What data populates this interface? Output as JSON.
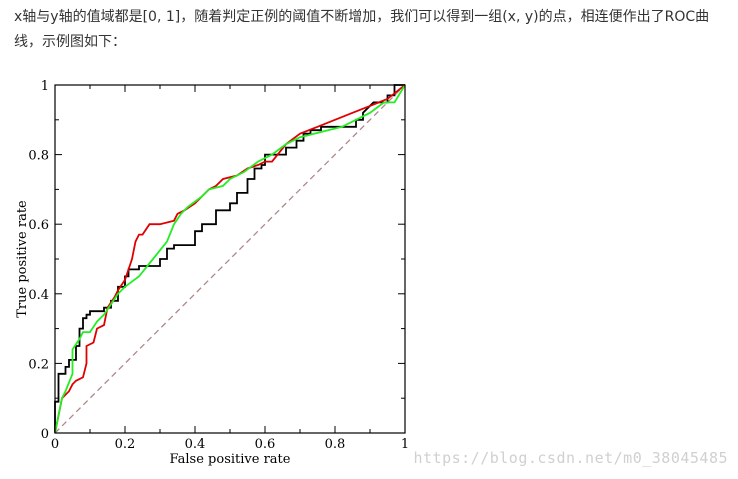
{
  "article": {
    "paragraph": "x轴与y轴的值域都是[0, 1]，随着判定正例的阈值不断增加，我们可以得到一组(x, y)的点，相连便作出了ROC曲线，示例图如下："
  },
  "watermark": "https://blog.csdn.net/m0_38045485",
  "colors": {
    "axis": "#000000",
    "series_black": "#000000",
    "series_red": "#e00000",
    "series_green": "#22ee22",
    "diagonal": "#b08888"
  },
  "chart_data": {
    "type": "line",
    "xlabel": "False positive rate",
    "ylabel": "True positive rate",
    "xlim": [
      0,
      1
    ],
    "ylim": [
      0,
      1
    ],
    "xticks": [
      "0",
      "0.2",
      "0.4",
      "0.6",
      "0.8",
      "1"
    ],
    "yticks": [
      "0",
      "0.2",
      "0.4",
      "0.6",
      "0.8",
      "1"
    ],
    "grid": false,
    "legend": "none",
    "diagonal": {
      "x": [
        0,
        1
      ],
      "y": [
        0,
        1
      ],
      "style": "dashed"
    },
    "series": [
      {
        "color": "#000000",
        "x": [
          0,
          0,
          0.01,
          0.01,
          0.03,
          0.03,
          0.04,
          0.04,
          0.06,
          0.06,
          0.07,
          0.07,
          0.08,
          0.08,
          0.09,
          0.09,
          0.1,
          0.1,
          0.14,
          0.14,
          0.16,
          0.16,
          0.18,
          0.18,
          0.2,
          0.2,
          0.21,
          0.21,
          0.24,
          0.24,
          0.3,
          0.3,
          0.32,
          0.32,
          0.34,
          0.34,
          0.4,
          0.4,
          0.42,
          0.42,
          0.46,
          0.46,
          0.5,
          0.5,
          0.52,
          0.52,
          0.55,
          0.55,
          0.57,
          0.57,
          0.59,
          0.59,
          0.6,
          0.6,
          0.66,
          0.66,
          0.69,
          0.69,
          0.71,
          0.71,
          0.73,
          0.73,
          0.76,
          0.76,
          0.86,
          0.86,
          0.88,
          0.88,
          0.91,
          0.95,
          0.95,
          0.97,
          0.97,
          1.0
        ],
        "y": [
          0,
          0.09,
          0.09,
          0.17,
          0.17,
          0.19,
          0.19,
          0.21,
          0.21,
          0.25,
          0.25,
          0.3,
          0.3,
          0.33,
          0.33,
          0.34,
          0.34,
          0.35,
          0.35,
          0.36,
          0.36,
          0.38,
          0.38,
          0.42,
          0.42,
          0.45,
          0.45,
          0.47,
          0.47,
          0.48,
          0.48,
          0.5,
          0.5,
          0.53,
          0.53,
          0.54,
          0.54,
          0.58,
          0.58,
          0.6,
          0.6,
          0.64,
          0.64,
          0.66,
          0.66,
          0.69,
          0.69,
          0.73,
          0.73,
          0.76,
          0.76,
          0.77,
          0.77,
          0.8,
          0.8,
          0.82,
          0.82,
          0.84,
          0.84,
          0.86,
          0.86,
          0.87,
          0.87,
          0.88,
          0.88,
          0.9,
          0.9,
          0.92,
          0.95,
          0.95,
          0.97,
          0.97,
          1.0,
          1.0
        ]
      },
      {
        "color": "#e00000",
        "x": [
          0,
          0.02,
          0.04,
          0.05,
          0.06,
          0.08,
          0.09,
          0.09,
          0.11,
          0.12,
          0.14,
          0.15,
          0.17,
          0.18,
          0.2,
          0.22,
          0.23,
          0.24,
          0.25,
          0.27,
          0.3,
          0.34,
          0.35,
          0.37,
          0.4,
          0.42,
          0.44,
          0.46,
          0.48,
          0.52,
          0.55,
          0.58,
          0.6,
          0.62,
          0.66,
          0.7,
          0.75,
          0.8,
          0.85,
          0.9,
          0.95,
          1.0
        ],
        "y": [
          0,
          0.1,
          0.12,
          0.14,
          0.15,
          0.16,
          0.2,
          0.25,
          0.26,
          0.3,
          0.31,
          0.36,
          0.39,
          0.41,
          0.44,
          0.5,
          0.55,
          0.57,
          0.57,
          0.6,
          0.6,
          0.61,
          0.63,
          0.64,
          0.66,
          0.68,
          0.7,
          0.71,
          0.73,
          0.74,
          0.76,
          0.77,
          0.78,
          0.78,
          0.83,
          0.86,
          0.88,
          0.9,
          0.92,
          0.94,
          0.96,
          1.0
        ]
      },
      {
        "color": "#22ee22",
        "x": [
          0,
          0.02,
          0.03,
          0.05,
          0.05,
          0.07,
          0.08,
          0.1,
          0.12,
          0.14,
          0.16,
          0.18,
          0.2,
          0.24,
          0.28,
          0.32,
          0.34,
          0.36,
          0.38,
          0.42,
          0.44,
          0.48,
          0.5,
          0.54,
          0.58,
          0.62,
          0.66,
          0.7,
          0.74,
          0.78,
          0.82,
          0.86,
          0.9,
          0.94,
          0.97,
          1.0
        ],
        "y": [
          0,
          0.1,
          0.12,
          0.17,
          0.24,
          0.27,
          0.29,
          0.29,
          0.32,
          0.34,
          0.37,
          0.4,
          0.42,
          0.45,
          0.5,
          0.55,
          0.6,
          0.63,
          0.65,
          0.68,
          0.7,
          0.71,
          0.73,
          0.75,
          0.78,
          0.8,
          0.83,
          0.85,
          0.86,
          0.87,
          0.88,
          0.9,
          0.92,
          0.95,
          0.95,
          1.0
        ]
      }
    ]
  }
}
